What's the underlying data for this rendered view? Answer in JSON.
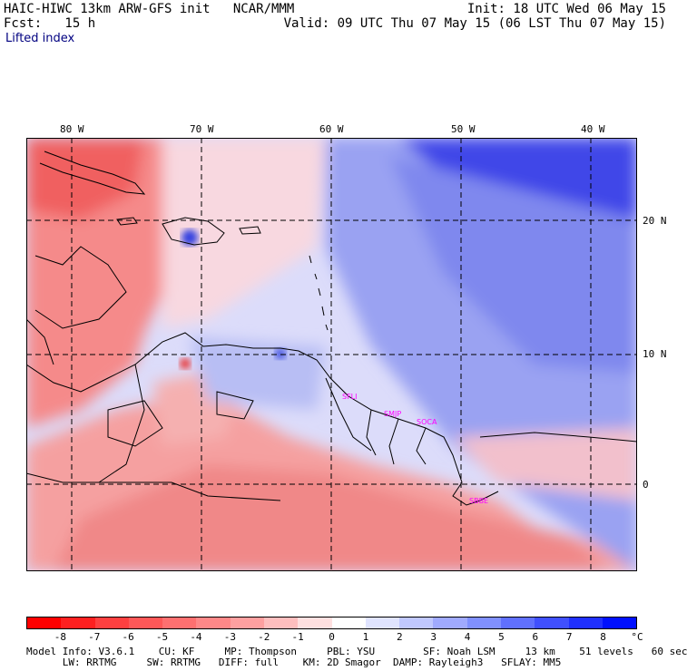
{
  "header": {
    "model_title": "HAIC-HIWC 13km ARW-GFS init   NCAR/MMM",
    "init": "Init: 18 UTC Wed 06 May 15",
    "fcst": "Fcst:   15 h",
    "valid": "Valid: 09 UTC Thu 07 May 15 (06 LST Thu 07 May 15)",
    "field": "Lifted index"
  },
  "lon_ticks": [
    "80 W",
    "70 W",
    "60 W",
    "50 W",
    "40 W"
  ],
  "lat_ticks": [
    "20 N",
    "10 N",
    "0"
  ],
  "sites": [
    "SFLI",
    "SMJP",
    "SOCA",
    "SBBE"
  ],
  "colorbar": {
    "labels": [
      "-8",
      "-7",
      "-6",
      "-5",
      "-4",
      "-3",
      "-2",
      "-1",
      "0",
      "1",
      "2",
      "3",
      "4",
      "5",
      "6",
      "7",
      "8"
    ],
    "unit": "°C",
    "colors": [
      "#ff0000",
      "#ff2020",
      "#ff4040",
      "#ff5858",
      "#ff7070",
      "#ff8888",
      "#ffa0a0",
      "#ffbebe",
      "#ffe0e0",
      "#ffffff",
      "#e0e4ff",
      "#c0c8ff",
      "#a0aaff",
      "#8090ff",
      "#6070ff",
      "#4050ff",
      "#2030ff",
      "#0010ff"
    ]
  },
  "model_info": {
    "line1": "Model Info: V3.6.1    CU: KF     MP: Thompson     PBL: YSU        SF: Noah LSM     13 km    51 levels   60 sec",
    "line2": "      LW: RRTMG     SW: RRTMG   DIFF: full    KM: 2D Smagor  DAMP: Rayleigh3   SFLAY: MM5"
  }
}
